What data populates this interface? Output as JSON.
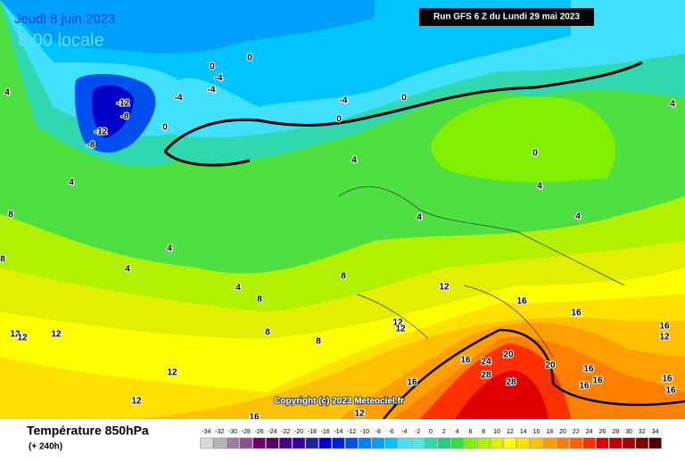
{
  "header": {
    "date": "Jeudi 8 juin 2023",
    "time": "8:00 locale",
    "run": "Run GFS 6 Z du Lundi 29 mai 2023"
  },
  "map": {
    "contour_labels": [
      4,
      -12,
      -8,
      -12,
      -8,
      0,
      -4,
      0,
      -4,
      -4,
      0,
      -4,
      0,
      0,
      4,
      0,
      4,
      4,
      4,
      4,
      8,
      4,
      4,
      4,
      8,
      8,
      8,
      8,
      12,
      12,
      12,
      16,
      16,
      16,
      12,
      12,
      12,
      12,
      12,
      12,
      16,
      12,
      16,
      16,
      24,
      28,
      20,
      28,
      20,
      16,
      16,
      16,
      16,
      16,
      4,
      8
    ],
    "copyright": "Copyright (c) 2023 Meteociel.fr"
  },
  "footer": {
    "title": "Température 850hPa",
    "lead": "(+ 240h)"
  },
  "scale": {
    "values": [
      -34,
      -32,
      -30,
      -28,
      -26,
      -24,
      -22,
      -20,
      -18,
      -16,
      -14,
      -12,
      -10,
      -8,
      -6,
      -4,
      -2,
      0,
      2,
      4,
      6,
      8,
      10,
      12,
      14,
      16,
      18,
      20,
      22,
      24,
      26,
      28,
      30,
      32,
      34
    ],
    "colors": [
      "#d8d8d8",
      "#b4b4b4",
      "#a07aa0",
      "#905090",
      "#700070",
      "#560068",
      "#440088",
      "#300098",
      "#2020a8",
      "#0000c8",
      "#0020e0",
      "#0050f0",
      "#0080ff",
      "#00a0ff",
      "#00c4ff",
      "#40e0ff",
      "#50e8e0",
      "#30d8b0",
      "#20d080",
      "#30e040",
      "#80f000",
      "#b0f000",
      "#e0f000",
      "#ffff00",
      "#ffe000",
      "#ffc000",
      "#ffa000",
      "#ff8000",
      "#ff6000",
      "#ff3000",
      "#e00000",
      "#c00000",
      "#a00000",
      "#800000",
      "#500000"
    ]
  }
}
